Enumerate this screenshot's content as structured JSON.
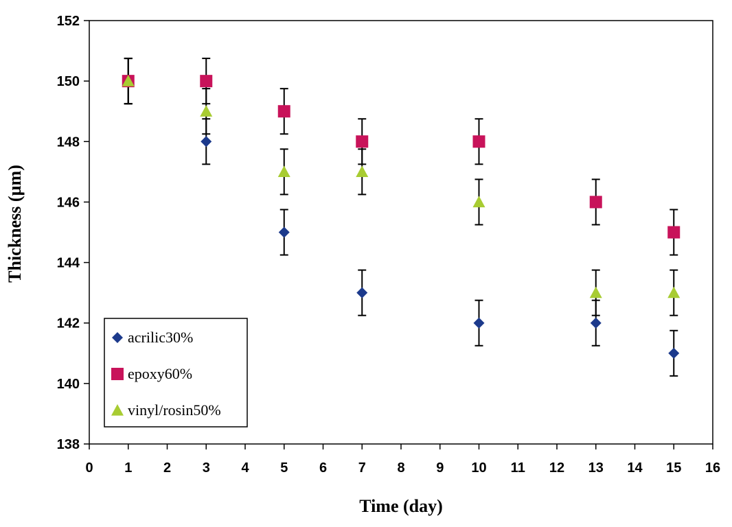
{
  "chart_data": {
    "type": "scatter",
    "title": "",
    "xlabel": "Time (day)",
    "ylabel": "Thickness (µm)",
    "xlim": [
      0,
      16
    ],
    "ylim": [
      138,
      152
    ],
    "xticks": [
      0,
      1,
      2,
      3,
      4,
      5,
      6,
      7,
      8,
      9,
      10,
      11,
      12,
      13,
      14,
      15,
      16
    ],
    "yticks": [
      138,
      140,
      142,
      144,
      146,
      148,
      150,
      152
    ],
    "grid": false,
    "legend_position": "bottom-left",
    "error_bar": 0.75,
    "series": [
      {
        "name": "acrilic30%",
        "marker": "diamond",
        "color": "#1c3a8c",
        "x": [
          1,
          3,
          5,
          7,
          10,
          13,
          15
        ],
        "y": [
          150,
          148,
          145,
          143,
          142,
          142,
          141
        ]
      },
      {
        "name": "epoxy60%",
        "marker": "square",
        "color": "#c8135a",
        "x": [
          1,
          3,
          5,
          7,
          10,
          13,
          15
        ],
        "y": [
          150,
          150,
          149,
          148,
          148,
          146,
          145
        ]
      },
      {
        "name": "vinyl/rosin50%",
        "marker": "triangle",
        "color": "#a8cc32",
        "x": [
          1,
          3,
          5,
          7,
          10,
          13,
          15
        ],
        "y": [
          150,
          149,
          147,
          147,
          146,
          143,
          143
        ]
      }
    ]
  }
}
